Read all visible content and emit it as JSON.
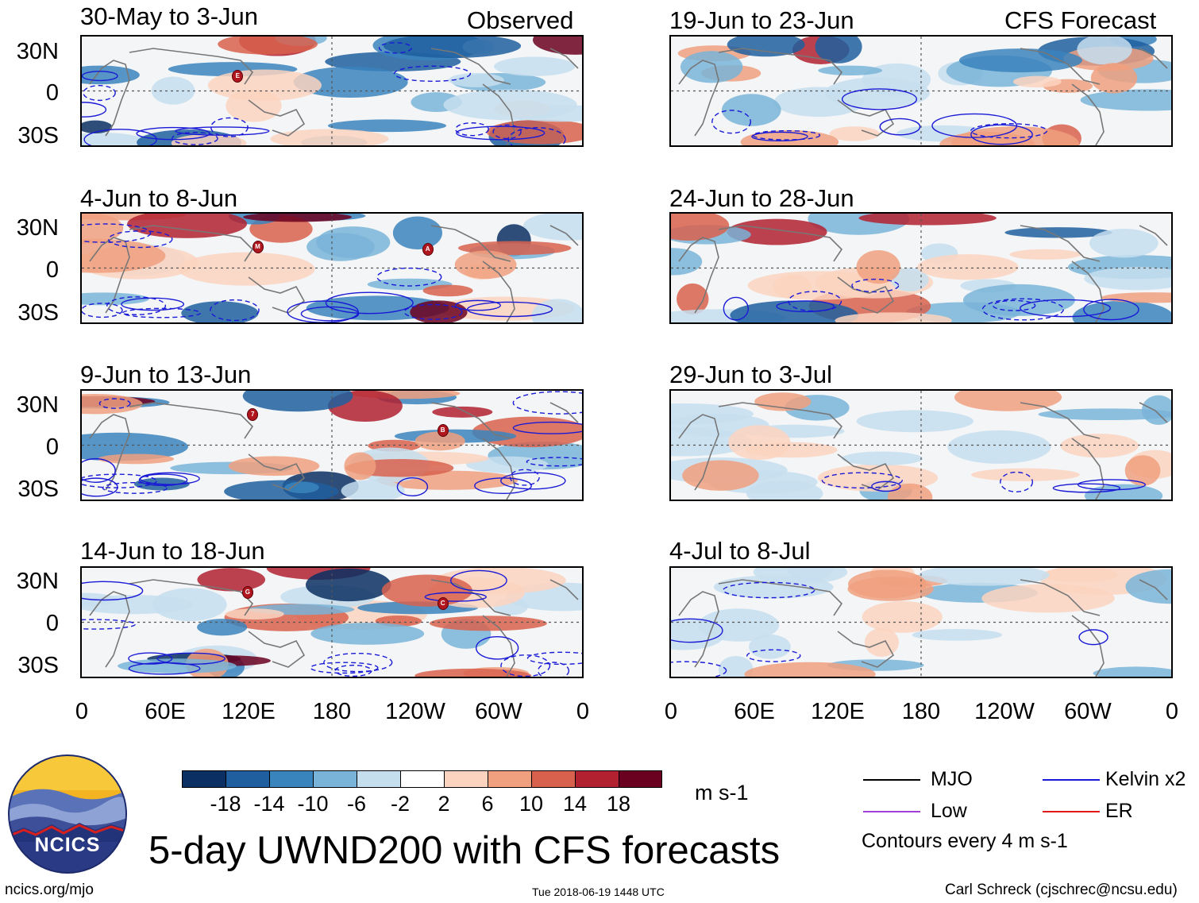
{
  "columns": {
    "left_title": "Observed",
    "right_title": "CFS Forecast"
  },
  "panels": [
    {
      "label": "30-May to 3-Jun"
    },
    {
      "label": "4-Jun to 8-Jun"
    },
    {
      "label": "9-Jun to 13-Jun"
    },
    {
      "label": "14-Jun to 18-Jun"
    },
    {
      "label": "19-Jun to 23-Jun"
    },
    {
      "label": "24-Jun to 28-Jun"
    },
    {
      "label": "29-Jun to 3-Jul"
    },
    {
      "label": "4-Jul to 8-Jul"
    }
  ],
  "lat_labels": [
    "30N",
    "0",
    "30S"
  ],
  "lon_labels": [
    "0",
    "60E",
    "120E",
    "180",
    "120W",
    "60W",
    "0"
  ],
  "colorbar": {
    "colors": [
      "#0b2f62",
      "#1f5f9f",
      "#3a84bd",
      "#79b4d8",
      "#c5deee",
      "#ffffff",
      "#fbd3bf",
      "#f0a07f",
      "#d8614e",
      "#b12130",
      "#6b0120"
    ],
    "ticks": [
      "-18",
      "-14",
      "-10",
      "-6",
      "-2",
      "2",
      "6",
      "10",
      "14",
      "18"
    ],
    "units": "m s-1"
  },
  "legend": {
    "items": [
      {
        "label": "MJO",
        "color": "#000000"
      },
      {
        "label": "Kelvin x2",
        "color": "#1a1ad6"
      },
      {
        "label": "Low",
        "color": "#a040d8"
      },
      {
        "label": "ER",
        "color": "#e01818"
      }
    ],
    "note": "Contours every 4 m s-1"
  },
  "title": "5-day UWND200 with CFS forecasts",
  "logo_text": "NCICS",
  "footer": {
    "url": "ncics.org/mjo",
    "timestamp": "Tue 2018-06-19 1448 UTC",
    "credit": "Carl Schreck (cjschrec@ncsu.edu)"
  },
  "storm_markers": [
    {
      "panel": 0,
      "letter": "E"
    },
    {
      "panel": 1,
      "letter": "M"
    },
    {
      "panel": 1,
      "letter": "A"
    },
    {
      "panel": 2,
      "letter": "7"
    },
    {
      "panel": 2,
      "letter": "B"
    },
    {
      "panel": 3,
      "letter": "G"
    },
    {
      "panel": 3,
      "letter": "C"
    }
  ]
}
